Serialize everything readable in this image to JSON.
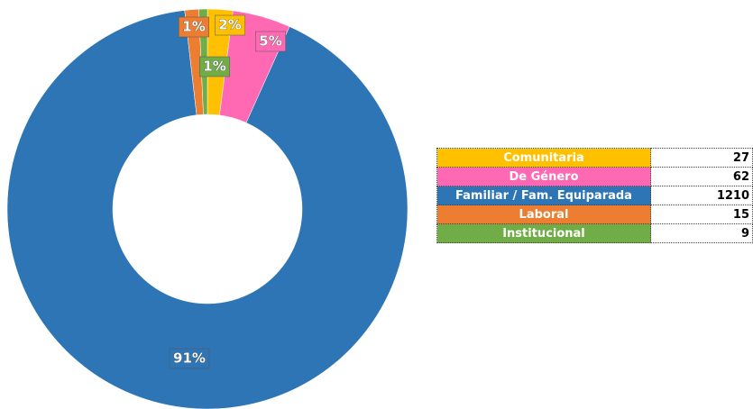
{
  "chart_data": {
    "type": "donut",
    "categories": [
      "Comunitaria",
      "De Género",
      "Familiar / Fam. Equiparada",
      "Laboral",
      "Institucional"
    ],
    "values": [
      27,
      62,
      1210,
      15,
      9
    ],
    "value_labels": [
      "2%",
      "5%",
      "91%",
      "1%",
      "1%"
    ],
    "colors": [
      "#ffc000",
      "#ff69b4",
      "#2e75b6",
      "#ed7d31",
      "#70ad47"
    ]
  }
}
